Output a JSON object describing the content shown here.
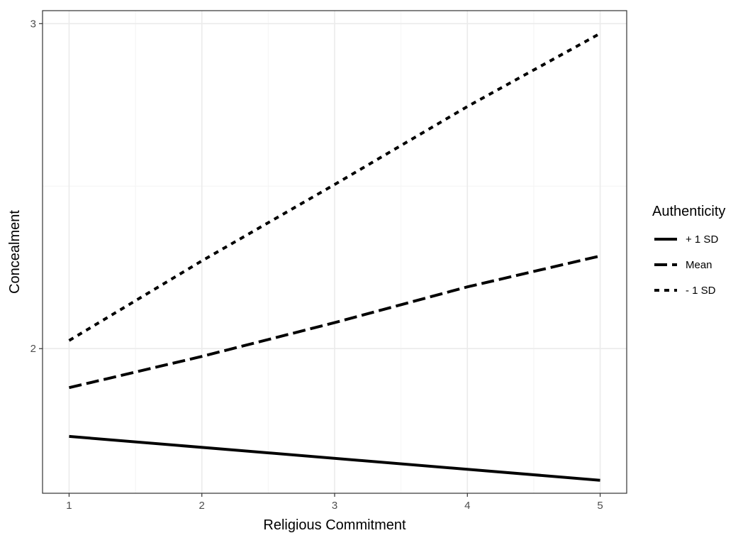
{
  "chart_data": {
    "type": "line",
    "xlabel": "Religious Commitment",
    "ylabel": "Concealment",
    "xlim": [
      0.8,
      5.2
    ],
    "ylim": [
      1.555,
      3.04
    ],
    "x_ticks": [
      1,
      2,
      3,
      4,
      5
    ],
    "y_ticks": [
      2,
      3
    ],
    "grid": true,
    "legend": {
      "title": "Authenticity",
      "placement": "right"
    },
    "series": [
      {
        "name": "+ 1 SD",
        "style": "solid",
        "x": [
          1,
          5
        ],
        "y": [
          1.73,
          1.595
        ]
      },
      {
        "name": "Mean",
        "style": "longdash",
        "x": [
          1,
          2,
          3,
          4,
          5
        ],
        "y": [
          1.88,
          1.976,
          2.08,
          2.19,
          2.285
        ]
      },
      {
        "name": "- 1 SD",
        "style": "dotted",
        "x": [
          1,
          2,
          3,
          4,
          5
        ],
        "y": [
          2.025,
          2.27,
          2.505,
          2.745,
          2.97
        ]
      }
    ],
    "colors": {
      "line": "#000000",
      "major_grid": "#ebebeb",
      "minor_grid": "#f4f4f4",
      "panel_border": "#333333"
    }
  }
}
